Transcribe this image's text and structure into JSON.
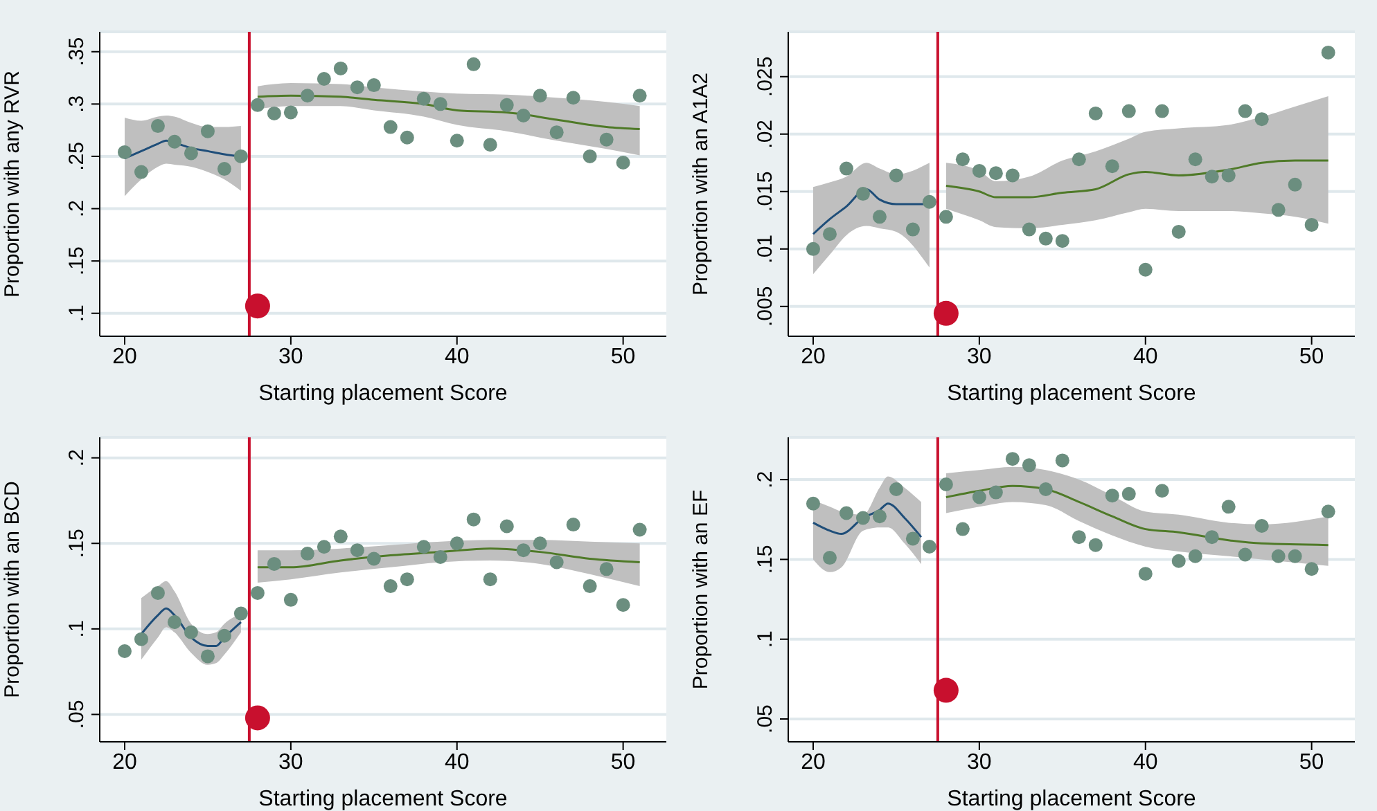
{
  "chart_data": [
    {
      "type": "scatter",
      "xlabel": "Starting placement Score",
      "ylabel": "Proportion with any RVR",
      "xlim": [
        18.5,
        52.6
      ],
      "xticks": [
        20,
        30,
        40,
        50
      ],
      "ylim": [
        0.078,
        0.369
      ],
      "yticks": [
        {
          "value": 0.1,
          "label": ".1"
        },
        {
          "value": 0.15,
          "label": ".15"
        },
        {
          "value": 0.2,
          "label": ".2"
        },
        {
          "value": 0.25,
          "label": ".25"
        },
        {
          "value": 0.3,
          "label": ".3"
        },
        {
          "value": 0.35,
          "label": ".35"
        }
      ],
      "grid": "y",
      "legend": false,
      "marker": "circle",
      "ref_lines": [
        {
          "axis": "x",
          "value": 27.5,
          "color": "#c8102e"
        }
      ],
      "series": [
        {
          "type": "line",
          "marker": "none",
          "color": "#1f4e79",
          "x": [
            20,
            21,
            22,
            22.5,
            23,
            24,
            25,
            26,
            27
          ],
          "values": [
            0.248,
            0.255,
            0.262,
            0.265,
            0.263,
            0.258,
            0.255,
            0.252,
            0.25
          ],
          "lower": [
            0.212,
            0.228,
            0.24,
            0.243,
            0.242,
            0.24,
            0.235,
            0.228,
            0.217
          ],
          "upper": [
            0.287,
            0.284,
            0.288,
            0.289,
            0.288,
            0.282,
            0.278,
            0.278,
            0.279
          ]
        },
        {
          "type": "line",
          "marker": "none",
          "color": "#4f7a28",
          "x": [
            28,
            30,
            33,
            35,
            38,
            40,
            43,
            46,
            49,
            51
          ],
          "values": [
            0.307,
            0.308,
            0.307,
            0.304,
            0.3,
            0.294,
            0.292,
            0.285,
            0.278,
            0.276
          ],
          "lower": [
            0.295,
            0.298,
            0.298,
            0.294,
            0.288,
            0.28,
            0.274,
            0.265,
            0.257,
            0.251
          ],
          "upper": [
            0.317,
            0.32,
            0.319,
            0.316,
            0.312,
            0.31,
            0.309,
            0.306,
            0.302,
            0.298
          ]
        },
        {
          "color": "#6b8e7f",
          "x": [
            20,
            21,
            22,
            23,
            24,
            25,
            26,
            27,
            28,
            29,
            30,
            31,
            32,
            33,
            34,
            35,
            36,
            37,
            38,
            39,
            40,
            41,
            42,
            43,
            44,
            45,
            46,
            47,
            48,
            49,
            50,
            51
          ],
          "values": [
            0.254,
            0.235,
            0.279,
            0.264,
            0.253,
            0.274,
            0.238,
            0.25,
            0.299,
            0.291,
            0.292,
            0.308,
            0.324,
            0.334,
            0.316,
            0.318,
            0.278,
            0.268,
            0.305,
            0.3,
            0.265,
            0.338,
            0.261,
            0.299,
            0.289,
            0.308,
            0.273,
            0.306,
            0.25,
            0.266,
            0.244,
            0.308
          ]
        },
        {
          "color": "#c8102e",
          "x": [
            28
          ],
          "values": [
            0.107
          ]
        }
      ]
    },
    {
      "type": "scatter",
      "xlabel": "Starting placement Score",
      "ylabel": "Proportion with an A1A2",
      "xlim": [
        18.5,
        52.6
      ],
      "xticks": [
        20,
        30,
        40,
        50
      ],
      "ylim": [
        0.0024,
        0.0289
      ],
      "yticks": [
        {
          "value": 0.005,
          "label": ".005"
        },
        {
          "value": 0.01,
          "label": ".01"
        },
        {
          "value": 0.015,
          "label": ".015"
        },
        {
          "value": 0.02,
          "label": ".02"
        },
        {
          "value": 0.025,
          "label": ".025"
        }
      ],
      "grid": "y",
      "legend": false,
      "marker": "circle",
      "ref_lines": [
        {
          "axis": "x",
          "value": 27.5,
          "color": "#c8102e"
        }
      ],
      "series": [
        {
          "type": "line",
          "marker": "none",
          "color": "#1f4e79",
          "x": [
            20,
            21,
            22,
            23.2,
            24,
            25,
            27
          ],
          "values": [
            0.0113,
            0.0126,
            0.0137,
            0.0152,
            0.0143,
            0.0139,
            0.0139
          ],
          "lower": [
            0.0078,
            0.0095,
            0.0112,
            0.012,
            0.0118,
            0.0115,
            0.0084
          ],
          "upper": [
            0.0154,
            0.0158,
            0.0163,
            0.0175,
            0.017,
            0.0165,
            0.0175
          ]
        },
        {
          "type": "line",
          "marker": "none",
          "color": "#4f7a28",
          "x": [
            28,
            30,
            31,
            33,
            35,
            37,
            39,
            40,
            42,
            45,
            47,
            49,
            51
          ],
          "values": [
            0.0155,
            0.015,
            0.0145,
            0.0145,
            0.0149,
            0.0152,
            0.0165,
            0.0167,
            0.0164,
            0.0169,
            0.0175,
            0.0177,
            0.0177
          ],
          "lower": [
            0.0135,
            0.0125,
            0.0119,
            0.0118,
            0.0121,
            0.0125,
            0.0132,
            0.0135,
            0.0133,
            0.0133,
            0.0131,
            0.0128,
            0.0122
          ],
          "upper": [
            0.0175,
            0.0168,
            0.0159,
            0.0163,
            0.0177,
            0.0185,
            0.0196,
            0.0202,
            0.0205,
            0.0208,
            0.0215,
            0.0224,
            0.0233
          ]
        },
        {
          "color": "#6b8e7f",
          "x": [
            20,
            21,
            22,
            23,
            24,
            25,
            26,
            27,
            28,
            29,
            30,
            31,
            32,
            33,
            34,
            35,
            36,
            37,
            38,
            39,
            40,
            41,
            42,
            43,
            44,
            45,
            46,
            47,
            48,
            49,
            50,
            51
          ],
          "values": [
            0.01,
            0.0113,
            0.017,
            0.0148,
            0.0128,
            0.0164,
            0.0117,
            0.0141,
            0.0128,
            0.0178,
            0.0168,
            0.0166,
            0.0164,
            0.0117,
            0.0109,
            0.0107,
            0.0178,
            0.0218,
            0.0172,
            0.022,
            0.0082,
            0.022,
            0.0115,
            0.0178,
            0.0163,
            0.0164,
            0.022,
            0.0213,
            0.0134,
            0.0156,
            0.0121,
            0.0271
          ]
        },
        {
          "color": "#c8102e",
          "x": [
            28
          ],
          "values": [
            0.0044
          ]
        }
      ]
    },
    {
      "type": "scatter",
      "xlabel": "Starting placement Score",
      "ylabel": "Proportion with an BCD",
      "xlim": [
        18.5,
        52.6
      ],
      "xticks": [
        20,
        30,
        40,
        50
      ],
      "ylim": [
        0.034,
        0.212
      ],
      "yticks": [
        {
          "value": 0.05,
          "label": ".05"
        },
        {
          "value": 0.1,
          "label": ".1"
        },
        {
          "value": 0.15,
          "label": ".15"
        },
        {
          "value": 0.2,
          "label": ".2"
        }
      ],
      "grid": "y",
      "legend": false,
      "marker": "circle",
      "ref_lines": [
        {
          "axis": "x",
          "value": 27.5,
          "color": "#c8102e"
        }
      ],
      "series": [
        {
          "type": "line",
          "marker": "none",
          "color": "#1f4e79",
          "x": [
            21,
            22,
            22.5,
            23,
            24,
            25,
            25.5,
            26,
            27
          ],
          "values": [
            0.097,
            0.108,
            0.112,
            0.108,
            0.095,
            0.09,
            0.09,
            0.095,
            0.104
          ],
          "lower": [
            0.082,
            0.095,
            0.101,
            0.098,
            0.086,
            0.079,
            0.08,
            0.085,
            0.098
          ],
          "upper": [
            0.118,
            0.125,
            0.128,
            0.122,
            0.103,
            0.097,
            0.098,
            0.103,
            0.109
          ]
        },
        {
          "type": "line",
          "marker": "none",
          "color": "#4f7a28",
          "x": [
            28,
            30,
            33,
            36,
            39,
            42,
            45,
            48,
            51
          ],
          "values": [
            0.136,
            0.136,
            0.14,
            0.143,
            0.145,
            0.147,
            0.145,
            0.141,
            0.139
          ],
          "lower": [
            0.127,
            0.129,
            0.133,
            0.136,
            0.139,
            0.14,
            0.138,
            0.132,
            0.125
          ],
          "upper": [
            0.146,
            0.146,
            0.147,
            0.149,
            0.151,
            0.152,
            0.152,
            0.151,
            0.15
          ]
        },
        {
          "color": "#6b8e7f",
          "x": [
            20,
            21,
            22,
            23,
            24,
            25,
            26,
            27,
            28,
            29,
            30,
            31,
            32,
            33,
            34,
            35,
            36,
            37,
            38,
            39,
            40,
            41,
            42,
            43,
            44,
            45,
            46,
            47,
            48,
            49,
            50,
            51
          ],
          "values": [
            0.087,
            0.094,
            0.121,
            0.104,
            0.098,
            0.084,
            0.096,
            0.109,
            0.121,
            0.138,
            0.117,
            0.144,
            0.148,
            0.154,
            0.146,
            0.141,
            0.125,
            0.129,
            0.148,
            0.142,
            0.15,
            0.164,
            0.129,
            0.16,
            0.146,
            0.15,
            0.139,
            0.161,
            0.125,
            0.135,
            0.114,
            0.158
          ]
        },
        {
          "color": "#c8102e",
          "x": [
            28
          ],
          "values": [
            0.048
          ]
        }
      ]
    },
    {
      "type": "scatter",
      "xlabel": "Starting placement Score",
      "ylabel": "Proportion with an EF",
      "xlim": [
        18.5,
        52.6
      ],
      "xticks": [
        20,
        30,
        40,
        50
      ],
      "ylim": [
        0.0357,
        0.2265
      ],
      "yticks": [
        {
          "value": 0.05,
          "label": ".05"
        },
        {
          "value": 0.1,
          "label": ".1"
        },
        {
          "value": 0.15,
          "label": ".15"
        },
        {
          "value": 0.2,
          "label": ".2"
        }
      ],
      "grid": "y",
      "legend": false,
      "marker": "circle",
      "ref_lines": [
        {
          "axis": "x",
          "value": 27.5,
          "color": "#c8102e"
        }
      ],
      "series": [
        {
          "type": "line",
          "marker": "none",
          "color": "#1f4e79",
          "x": [
            20,
            21,
            21.7,
            23,
            24,
            24.5,
            25.5,
            26.5
          ],
          "values": [
            0.173,
            0.168,
            0.166,
            0.176,
            0.181,
            0.185,
            0.176,
            0.164
          ],
          "lower": [
            0.15,
            0.142,
            0.145,
            0.168,
            0.17,
            0.17,
            0.16,
            0.147
          ],
          "upper": [
            0.187,
            0.183,
            0.18,
            0.178,
            0.195,
            0.202,
            0.195,
            0.186
          ]
        },
        {
          "type": "line",
          "marker": "none",
          "color": "#4f7a28",
          "x": [
            28,
            30,
            32,
            34,
            36,
            38,
            40,
            42,
            45,
            47,
            51
          ],
          "values": [
            0.189,
            0.193,
            0.196,
            0.194,
            0.186,
            0.177,
            0.169,
            0.167,
            0.162,
            0.16,
            0.159
          ],
          "lower": [
            0.179,
            0.183,
            0.186,
            0.184,
            0.174,
            0.165,
            0.158,
            0.155,
            0.152,
            0.15,
            0.146
          ],
          "upper": [
            0.204,
            0.206,
            0.208,
            0.206,
            0.2,
            0.19,
            0.18,
            0.178,
            0.173,
            0.172,
            0.177
          ]
        },
        {
          "color": "#6b8e7f",
          "x": [
            20,
            21,
            22,
            23,
            24,
            25,
            26,
            27,
            28,
            29,
            30,
            31,
            32,
            33,
            34,
            35,
            36,
            37,
            38,
            39,
            40,
            41,
            42,
            43,
            44,
            45,
            46,
            47,
            48,
            49,
            50,
            51
          ],
          "values": [
            0.185,
            0.151,
            0.179,
            0.176,
            0.177,
            0.194,
            0.163,
            0.158,
            0.197,
            0.169,
            0.189,
            0.192,
            0.213,
            0.209,
            0.194,
            0.212,
            0.164,
            0.159,
            0.19,
            0.191,
            0.141,
            0.193,
            0.149,
            0.152,
            0.164,
            0.183,
            0.153,
            0.171,
            0.152,
            0.152,
            0.144,
            0.18
          ]
        },
        {
          "color": "#c8102e",
          "x": [
            28
          ],
          "values": [
            0.068
          ]
        }
      ]
    }
  ]
}
